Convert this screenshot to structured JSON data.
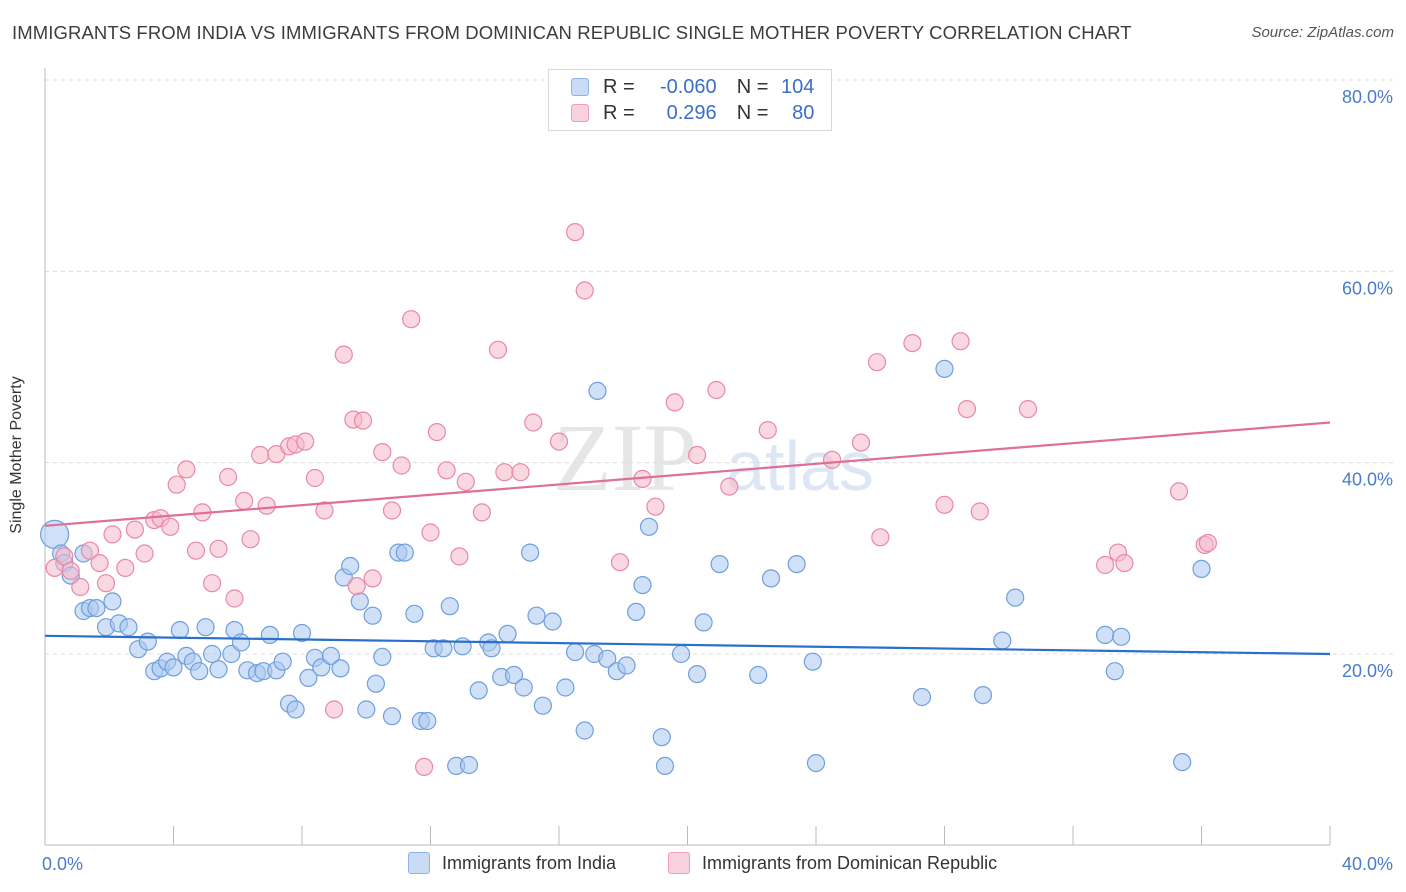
{
  "header": {
    "title": "IMMIGRANTS FROM INDIA VS IMMIGRANTS FROM DOMINICAN REPUBLIC SINGLE MOTHER POVERTY CORRELATION CHART",
    "source": "Source: ZipAtlas.com"
  },
  "watermark": {
    "zip": "ZIP",
    "atlas": "atlas"
  },
  "legend": {
    "r_label": "R =",
    "n_label": "N =",
    "rows": [
      {
        "r": "-0.060",
        "n": "104",
        "color": "#a9c8f0"
      },
      {
        "r": "0.296",
        "n": "80",
        "color": "#f5b8cb"
      }
    ]
  },
  "bottom_legend": {
    "items": [
      {
        "label": "Immigrants from India",
        "color": "#a9c8f0"
      },
      {
        "label": "Immigrants from Dominican Republic",
        "color": "#f5b8cb"
      }
    ]
  },
  "chart_data": {
    "type": "scatter",
    "title": "IMMIGRANTS FROM INDIA VS IMMIGRANTS FROM DOMINICAN REPUBLIC SINGLE MOTHER POVERTY CORRELATION CHART",
    "ylabel": "Single Mother Poverty",
    "xlabel": "",
    "xlim": [
      0,
      40
    ],
    "ylim": [
      0,
      80
    ],
    "x_tick_labels": [
      "0.0%",
      "40.0%"
    ],
    "y_ticks": [
      20,
      40,
      60,
      80
    ],
    "y_tick_labels": [
      "20.0%",
      "40.0%",
      "60.0%",
      "80.0%"
    ],
    "grid": "horizontal dashed",
    "legend_position": "top-center",
    "series": [
      {
        "name": "Immigrants from India",
        "color": "#a9c8f0",
        "stroke": "#6f9fdc",
        "trend_color": "#2a6fcb",
        "trend": {
          "x0": 0,
          "y0": 21.9,
          "x1": 40,
          "y1": 20.0
        },
        "points": [
          [
            0.3,
            32.5
          ],
          [
            0.5,
            30.5
          ],
          [
            0.6,
            29.5
          ],
          [
            0.8,
            28.2
          ],
          [
            1.2,
            30.5
          ],
          [
            1.2,
            24.5
          ],
          [
            1.4,
            24.8
          ],
          [
            1.6,
            24.8
          ],
          [
            1.9,
            22.8
          ],
          [
            2.1,
            25.5
          ],
          [
            2.3,
            23.2
          ],
          [
            2.6,
            22.8
          ],
          [
            2.9,
            20.5
          ],
          [
            3.2,
            21.3
          ],
          [
            3.4,
            18.2
          ],
          [
            3.6,
            18.5
          ],
          [
            3.8,
            19.2
          ],
          [
            4.0,
            18.6
          ],
          [
            4.2,
            22.5
          ],
          [
            4.4,
            19.8
          ],
          [
            4.6,
            19.2
          ],
          [
            4.8,
            18.2
          ],
          [
            5.0,
            22.8
          ],
          [
            5.2,
            20.0
          ],
          [
            5.4,
            18.4
          ],
          [
            5.8,
            20.0
          ],
          [
            5.9,
            22.5
          ],
          [
            6.1,
            21.2
          ],
          [
            6.3,
            18.3
          ],
          [
            6.6,
            18.0
          ],
          [
            6.8,
            18.2
          ],
          [
            7.0,
            22.0
          ],
          [
            7.2,
            18.3
          ],
          [
            7.4,
            19.2
          ],
          [
            7.6,
            14.8
          ],
          [
            7.8,
            14.2
          ],
          [
            8.0,
            22.2
          ],
          [
            8.2,
            17.5
          ],
          [
            8.4,
            19.6
          ],
          [
            8.6,
            18.6
          ],
          [
            8.9,
            19.8
          ],
          [
            9.2,
            18.5
          ],
          [
            9.3,
            28.0
          ],
          [
            9.5,
            29.2
          ],
          [
            9.8,
            25.5
          ],
          [
            10.0,
            14.2
          ],
          [
            10.2,
            24.0
          ],
          [
            10.3,
            16.9
          ],
          [
            10.5,
            19.7
          ],
          [
            10.8,
            13.5
          ],
          [
            11.0,
            30.6
          ],
          [
            11.2,
            30.6
          ],
          [
            11.5,
            24.2
          ],
          [
            11.7,
            13.0
          ],
          [
            11.9,
            13.0
          ],
          [
            12.1,
            20.6
          ],
          [
            12.4,
            20.6
          ],
          [
            12.6,
            25.0
          ],
          [
            12.8,
            8.3
          ],
          [
            13.0,
            20.8
          ],
          [
            13.2,
            8.4
          ],
          [
            13.5,
            16.2
          ],
          [
            13.8,
            21.2
          ],
          [
            13.9,
            20.6
          ],
          [
            14.2,
            17.6
          ],
          [
            14.4,
            22.1
          ],
          [
            14.6,
            17.8
          ],
          [
            14.9,
            16.5
          ],
          [
            15.1,
            30.6
          ],
          [
            15.3,
            24.0
          ],
          [
            15.5,
            14.6
          ],
          [
            15.8,
            23.4
          ],
          [
            16.2,
            16.5
          ],
          [
            16.5,
            20.2
          ],
          [
            16.8,
            12.0
          ],
          [
            17.1,
            20.0
          ],
          [
            17.2,
            47.5
          ],
          [
            17.5,
            19.5
          ],
          [
            17.8,
            18.2
          ],
          [
            18.1,
            18.8
          ],
          [
            18.4,
            24.4
          ],
          [
            18.6,
            27.2
          ],
          [
            18.8,
            33.3
          ],
          [
            19.2,
            11.3
          ],
          [
            19.3,
            8.3
          ],
          [
            19.8,
            20.0
          ],
          [
            20.3,
            17.9
          ],
          [
            20.5,
            23.3
          ],
          [
            21.0,
            29.4
          ],
          [
            22.2,
            17.8
          ],
          [
            22.6,
            27.9
          ],
          [
            23.4,
            29.4
          ],
          [
            23.9,
            19.2
          ],
          [
            24.0,
            8.6
          ],
          [
            27.3,
            15.5
          ],
          [
            28.0,
            49.8
          ],
          [
            29.2,
            15.7
          ],
          [
            29.8,
            21.4
          ],
          [
            30.2,
            25.9
          ],
          [
            33.0,
            22.0
          ],
          [
            33.3,
            18.2
          ],
          [
            33.5,
            21.8
          ],
          [
            35.4,
            8.7
          ],
          [
            36.0,
            28.9
          ]
        ]
      },
      {
        "name": "Immigrants from Dominican Republic",
        "color": "#f5b8cb",
        "stroke": "#e889a7",
        "trend_color": "#de6f96",
        "trend": {
          "x0": 0,
          "y0": 33.4,
          "x1": 40,
          "y1": 44.2
        },
        "points": [
          [
            0.3,
            29.0
          ],
          [
            0.6,
            30.2
          ],
          [
            0.8,
            28.7
          ],
          [
            1.1,
            27.0
          ],
          [
            1.4,
            30.8
          ],
          [
            1.7,
            29.5
          ],
          [
            1.9,
            27.4
          ],
          [
            2.1,
            32.5
          ],
          [
            2.5,
            29.0
          ],
          [
            2.8,
            33.0
          ],
          [
            3.1,
            30.5
          ],
          [
            3.4,
            34.0
          ],
          [
            3.6,
            34.2
          ],
          [
            3.9,
            33.3
          ],
          [
            4.1,
            37.7
          ],
          [
            4.4,
            39.3
          ],
          [
            4.7,
            30.8
          ],
          [
            4.9,
            34.8
          ],
          [
            5.2,
            27.4
          ],
          [
            5.4,
            31.0
          ],
          [
            5.7,
            38.5
          ],
          [
            5.9,
            25.8
          ],
          [
            6.2,
            36.0
          ],
          [
            6.4,
            32.0
          ],
          [
            6.7,
            40.8
          ],
          [
            6.9,
            35.5
          ],
          [
            7.2,
            40.9
          ],
          [
            7.6,
            41.7
          ],
          [
            7.8,
            41.9
          ],
          [
            8.1,
            42.2
          ],
          [
            8.4,
            38.4
          ],
          [
            8.7,
            35.0
          ],
          [
            9.0,
            14.2
          ],
          [
            9.3,
            51.3
          ],
          [
            9.6,
            44.5
          ],
          [
            9.7,
            27.1
          ],
          [
            9.9,
            44.4
          ],
          [
            10.2,
            27.9
          ],
          [
            10.5,
            41.1
          ],
          [
            10.8,
            35.0
          ],
          [
            11.1,
            39.7
          ],
          [
            11.4,
            55.0
          ],
          [
            11.8,
            8.2
          ],
          [
            12.0,
            32.7
          ],
          [
            12.2,
            43.2
          ],
          [
            12.5,
            39.2
          ],
          [
            12.9,
            30.2
          ],
          [
            13.1,
            38.0
          ],
          [
            13.6,
            34.8
          ],
          [
            14.1,
            51.8
          ],
          [
            14.3,
            39.0
          ],
          [
            14.8,
            39.0
          ],
          [
            15.2,
            44.2
          ],
          [
            16.0,
            42.2
          ],
          [
            16.5,
            64.1
          ],
          [
            16.8,
            58.0
          ],
          [
            17.9,
            29.6
          ],
          [
            18.6,
            38.3
          ],
          [
            19.0,
            35.4
          ],
          [
            19.6,
            46.3
          ],
          [
            20.3,
            40.8
          ],
          [
            20.9,
            47.6
          ],
          [
            21.3,
            37.5
          ],
          [
            22.5,
            43.4
          ],
          [
            24.5,
            40.3
          ],
          [
            25.4,
            42.1
          ],
          [
            25.9,
            50.5
          ],
          [
            26.0,
            32.2
          ],
          [
            27.0,
            52.5
          ],
          [
            28.0,
            35.6
          ],
          [
            28.5,
            52.7
          ],
          [
            28.7,
            45.6
          ],
          [
            29.1,
            34.9
          ],
          [
            30.6,
            45.6
          ],
          [
            33.0,
            29.3
          ],
          [
            33.4,
            30.6
          ],
          [
            33.6,
            29.5
          ],
          [
            35.3,
            37.0
          ],
          [
            36.1,
            31.4
          ],
          [
            36.2,
            31.6
          ]
        ]
      }
    ]
  }
}
